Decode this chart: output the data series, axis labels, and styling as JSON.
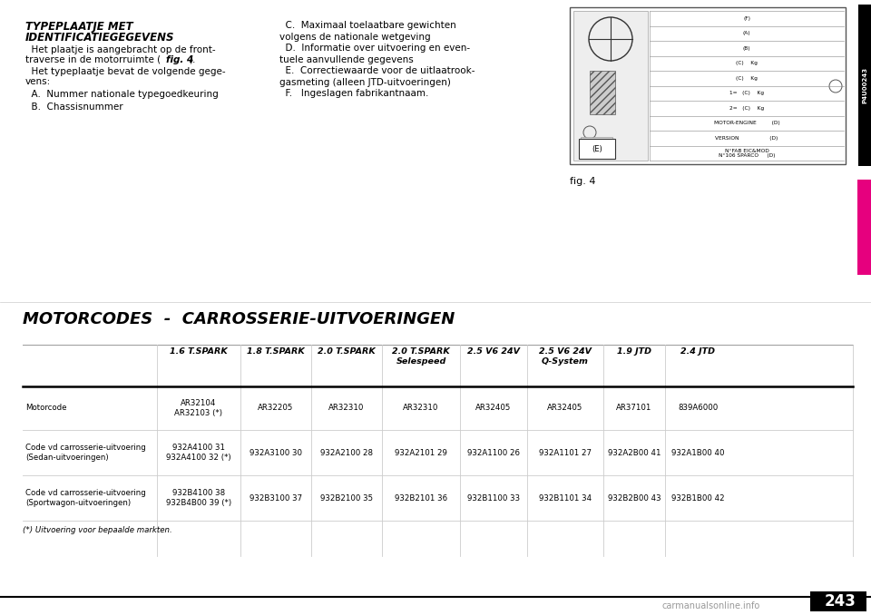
{
  "page_bg": "#ffffff",
  "page_number": "243",
  "section_title_line1": "TYPEPLAATJE MET",
  "section_title_line2": "IDENTIFICATIEGEGEVENS",
  "body_para1_a": "  Het plaatje is aangebracht op de front-",
  "body_para1_b": "traverse in de motorruimte (",
  "body_para1_fig": "fig. 4",
  "body_para1_c": ").",
  "body_para2": "  Het typeplaatje bevat de volgende gege-\nvens:",
  "body_item_A": "  A.  Nummer nationale typegoedkeuring",
  "body_item_B": "  B.  Chassisnummer",
  "col2_text_C": "  C.  Maximaal toelaatbare gewichten\nvolgens de nationale wetgeving",
  "col2_text_D": "  D.  Informatie over uitvoering en even-\ntuele aanvullende gegevens",
  "col2_text_E": "  E.  Correctiewaarde voor de uitlaatrook-\ngasmeting (alleen JTD-uitvoeringen)",
  "col2_text_F": "  F.   Ingeslagen fabrikantnaam.",
  "fig_label": "fig. 4",
  "table_title": "MOTORCODES  -  CARROSSERIE-UITVOERINGEN",
  "col_headers": [
    "",
    "1.6 T.SPARK",
    "1.8 T.SPARK",
    "2.0 T.SPARK",
    "2.0 T.SPARK\nSelespeed",
    "2.5 V6 24V",
    "2.5 V6 24V\nQ-System",
    "1.9 JTD",
    "2.4 JTD"
  ],
  "row_labels": [
    "Motorcode",
    "Code vd carrosserie-uitvoering\n(Sedan-uitvoeringen)",
    "Code vd carrosserie-uitvoering\n(Sportwagon-uitvoeringen)"
  ],
  "table_data": [
    [
      "AR32104\nAR32103 (*)",
      "AR32205",
      "AR32310",
      "AR32310",
      "AR32405",
      "AR32405",
      "AR37101",
      "839A6000"
    ],
    [
      "932A4100 31\n932A4100 32 (*)",
      "932A3100 30",
      "932A2100 28",
      "932A2101 29",
      "932A1100 26",
      "932A1101 27",
      "932A2B00 41",
      "932A1B00 40"
    ],
    [
      "932B4100 38\n932B4B00 39 (*)",
      "932B3100 37",
      "932B2100 35",
      "932B2101 36",
      "932B1100 33",
      "932B1101 34",
      "932B2B00 43",
      "932B1B00 42"
    ]
  ],
  "footnote": "(*) Uitvoering voor bepaalde markten.",
  "magenta_bar_color": "#e6007e",
  "sidebar_code": "P4U00243",
  "watermark": "carmanualsonline.info"
}
